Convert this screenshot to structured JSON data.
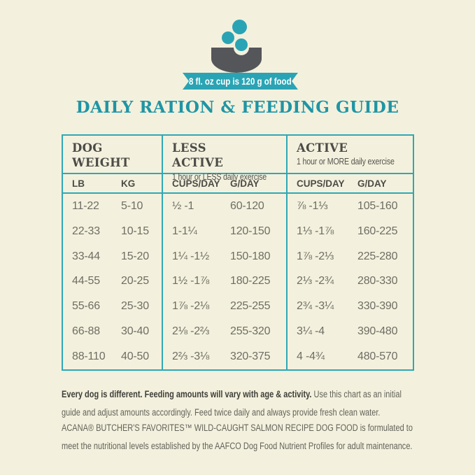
{
  "badge": {
    "text": "8 fl. oz cup is 120 g of food"
  },
  "title": "DAILY RATION & FEEDING GUIDE",
  "colors": {
    "background": "#f3f1dd",
    "accent_teal": "#2aa4b4",
    "title_teal": "#1f95a5",
    "table_border_teal": "#2ea8b5",
    "bowl_gray": "#55565a",
    "header_text": "#4c4b47",
    "data_text": "#6f6d64",
    "badge_text": "#ffffff"
  },
  "table": {
    "groups": [
      {
        "title": "DOG WEIGHT",
        "subtitle": "",
        "columns": [
          "LB",
          "KG"
        ]
      },
      {
        "title": "LESS ACTIVE",
        "subtitle": "1 hour or LESS daily exercise",
        "columns": [
          "CUPS/DAY",
          "G/DAY"
        ]
      },
      {
        "title": "ACTIVE",
        "subtitle": "1 hour or MORE daily exercise",
        "columns": [
          "CUPS/DAY",
          "G/DAY"
        ]
      }
    ],
    "rows": [
      [
        "11-22",
        "5-10",
        "½ -1",
        "60-120",
        "⅞ -1⅓",
        "105-160"
      ],
      [
        "22-33",
        "10-15",
        "1-1¼",
        "120-150",
        "1⅓ -1⅞",
        "160-225"
      ],
      [
        "33-44",
        "15-20",
        "1¼ -1½",
        "150-180",
        "1⅞ -2⅓",
        "225-280"
      ],
      [
        "44-55",
        "20-25",
        "1½ -1⅞",
        "180-225",
        "2⅓ -2¾",
        "280-330"
      ],
      [
        "55-66",
        "25-30",
        "1⅞ -2⅛",
        "225-255",
        "2¾ -3¼",
        "330-390"
      ],
      [
        "66-88",
        "30-40",
        "2⅛ -2⅔",
        "255-320",
        "3¼ -4",
        "390-480"
      ],
      [
        "88-110",
        "40-50",
        "2⅔ -3⅛",
        "320-375",
        "4 -4¾",
        "480-570"
      ]
    ]
  },
  "footer": {
    "note_bold": "Every dog is different. Feeding amounts will vary with age & activity.",
    "note_regular": " Use this chart as an initial guide and adjust amounts accordingly. Feed twice daily and always provide fresh clean water.",
    "compliance": "ACANA® BUTCHER'S FAVORITES™ WILD-CAUGHT SALMON RECIPE DOG FOOD is formulated to meet the nutritional levels established by the AAFCO Dog Food Nutrient Profiles for adult maintenance."
  }
}
